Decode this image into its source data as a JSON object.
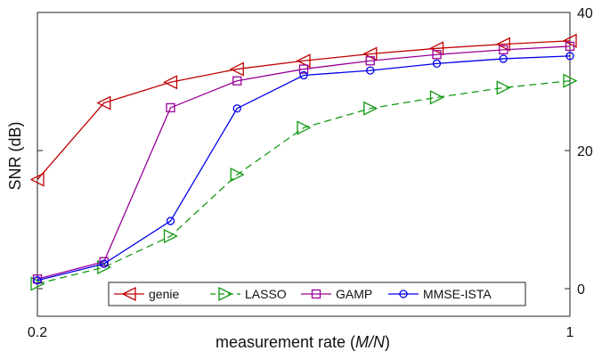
{
  "chart_data": {
    "type": "line",
    "xlabel_prefix": "measurement rate (",
    "xlabel_var": "M/N",
    "xlabel_suffix": ")",
    "ylabel": "SNR (dB)",
    "xlim": [
      0.2,
      1.0
    ],
    "ylim": [
      -4,
      40
    ],
    "x_ticks": [
      0.2,
      1
    ],
    "y_ticks": [
      0,
      20,
      40
    ],
    "y_axis_side": "right",
    "grid": false,
    "legend_position": "bottom-center",
    "x": [
      0.2,
      0.3,
      0.4,
      0.5,
      0.6,
      0.7,
      0.8,
      0.9,
      1.0
    ],
    "series": [
      {
        "name": "genie",
        "color": "#c00000",
        "marker": "triangle-left",
        "dash": "solid",
        "values": [
          15.8,
          26.9,
          29.9,
          31.8,
          33.0,
          34.0,
          34.8,
          35.4,
          35.9
        ]
      },
      {
        "name": "LASSO",
        "color": "#119911",
        "marker": "triangle-right",
        "dash": "dashed",
        "values": [
          0.7,
          3.1,
          7.6,
          16.5,
          23.3,
          26.1,
          27.7,
          29.1,
          30.1
        ]
      },
      {
        "name": "GAMP",
        "color": "#990099",
        "marker": "square",
        "dash": "solid",
        "values": [
          1.4,
          3.9,
          26.2,
          30.1,
          31.8,
          33.0,
          33.9,
          34.6,
          35.1
        ]
      },
      {
        "name": "MMSE-ISTA",
        "color": "#0000ee",
        "marker": "circle",
        "dash": "solid",
        "values": [
          1.2,
          3.6,
          9.8,
          26.1,
          30.9,
          31.6,
          32.6,
          33.3,
          33.7
        ]
      }
    ]
  }
}
